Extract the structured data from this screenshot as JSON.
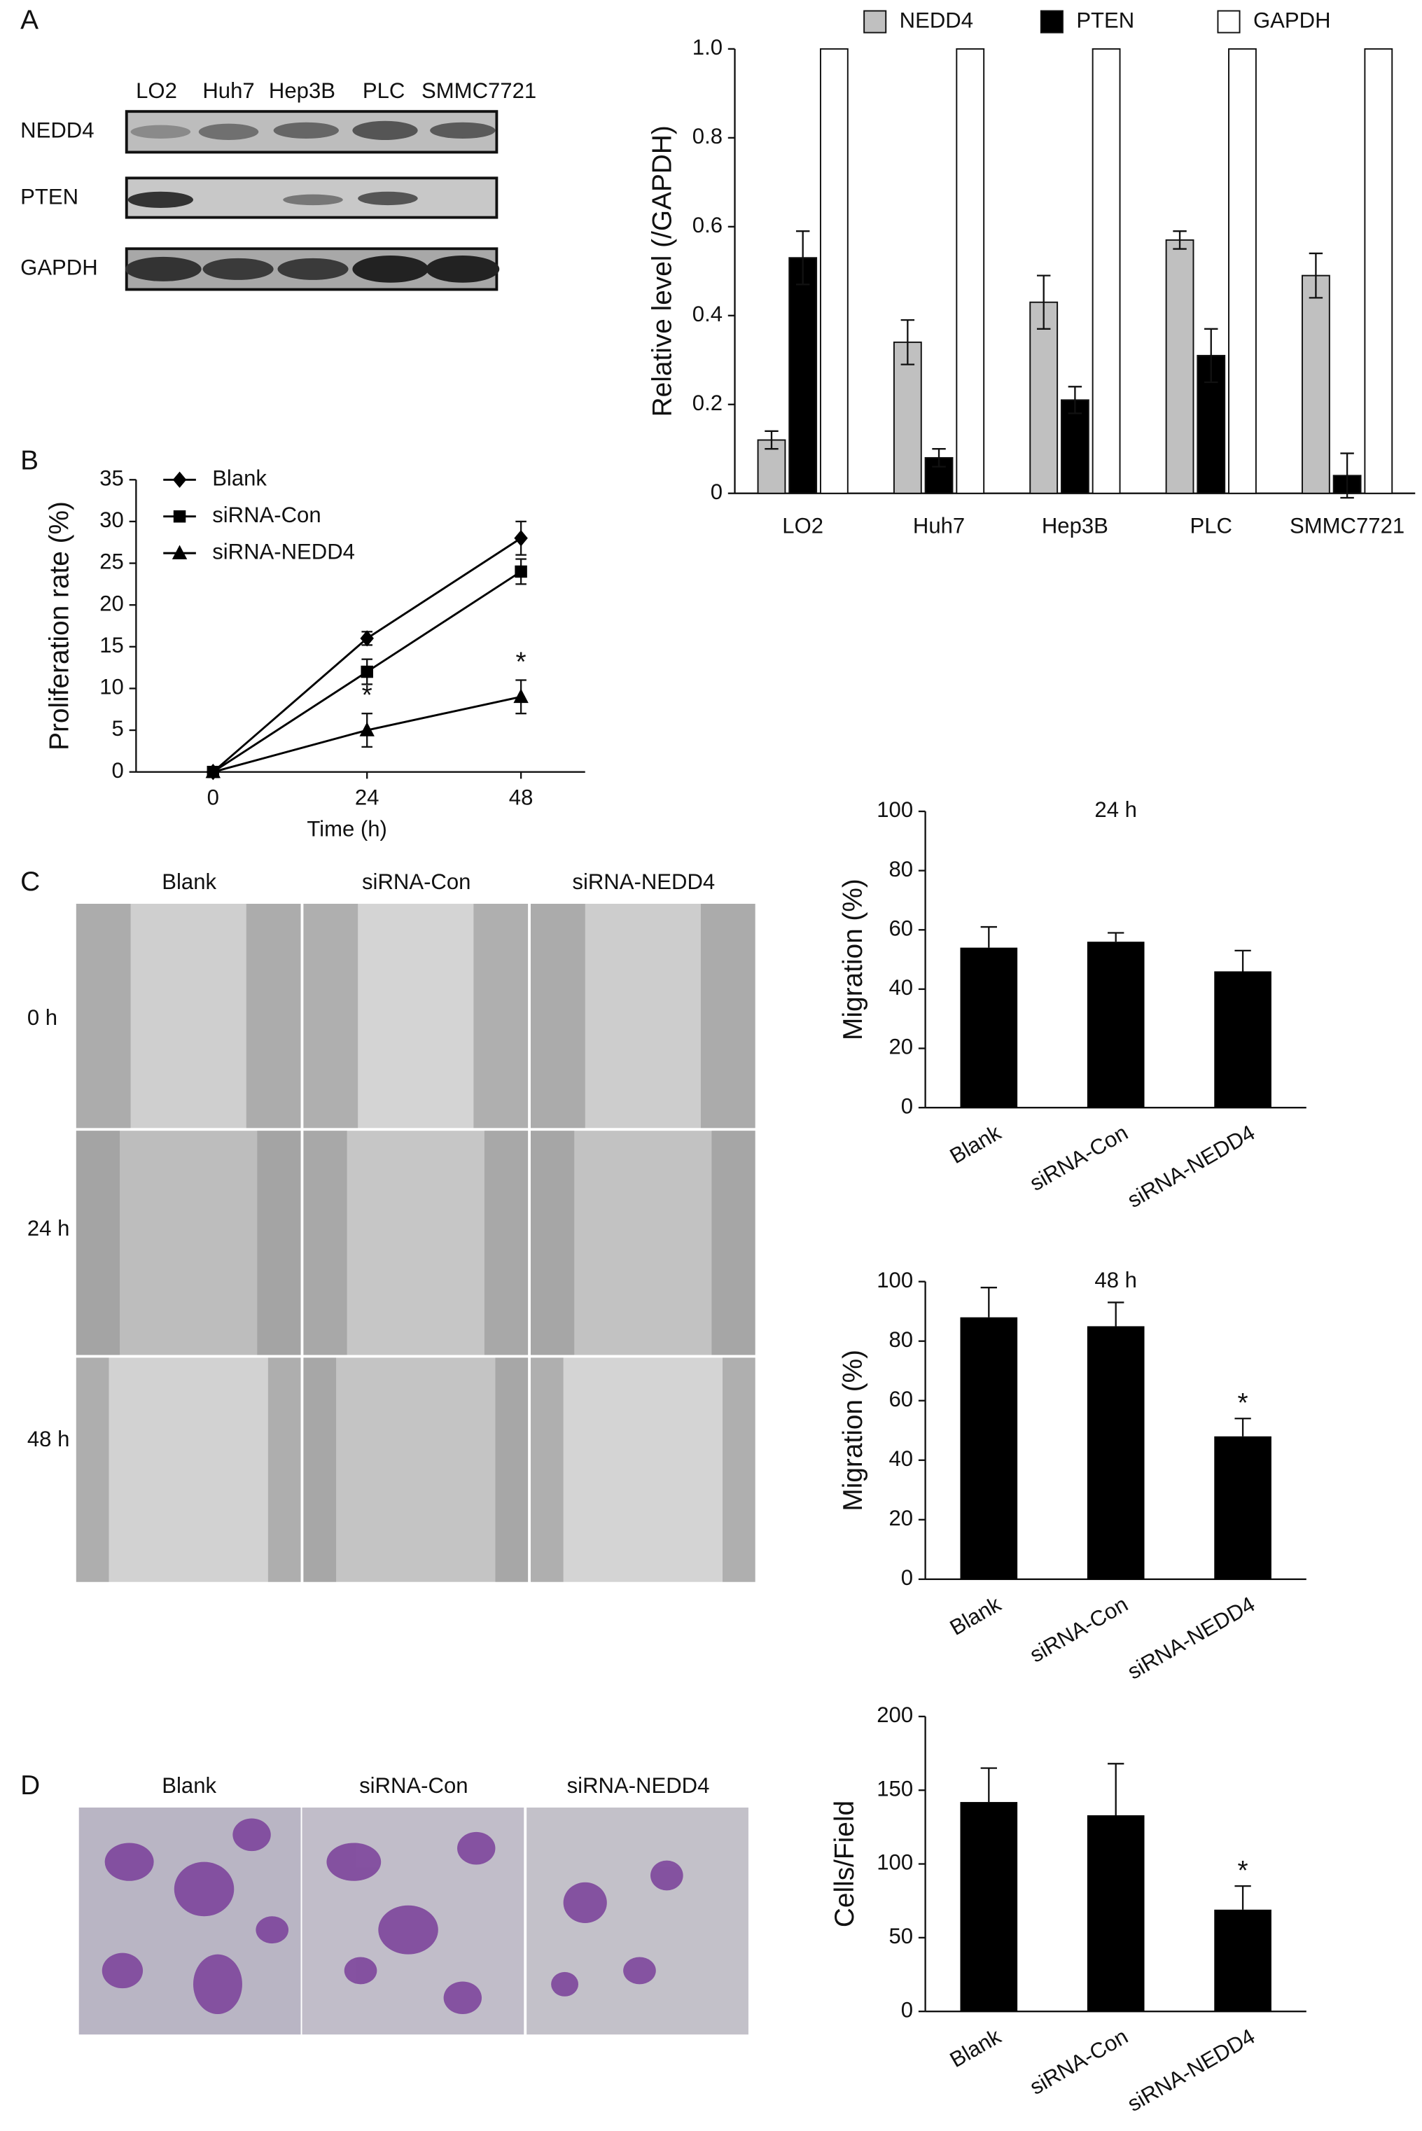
{
  "panel_labels": [
    "A",
    "B",
    "C",
    "D"
  ],
  "blot": {
    "lanes": [
      "LO2",
      "Huh7",
      "Hep3B",
      "PLC",
      "SMMC7721"
    ],
    "rows": [
      "NEDD4",
      "PTEN",
      "GAPDH"
    ]
  },
  "wound": {
    "columns": [
      "Blank",
      "siRNA-Con",
      "siRNA-NEDD4"
    ],
    "rows": [
      "0 h",
      "24 h",
      "48 h"
    ]
  },
  "transwell": {
    "columns": [
      "Blank",
      "siRNA-Con",
      "siRNA-NEDD4"
    ]
  },
  "chart_data": [
    {
      "type": "bar",
      "ylabel": "Relative level (/GAPDH)",
      "categories": [
        "LO2",
        "Huh7",
        "Hep3B",
        "PLC",
        "SMMC7721"
      ],
      "series": [
        {
          "name": "NEDD4",
          "color": "#c0c0c0",
          "values": [
            0.12,
            0.34,
            0.43,
            0.57,
            0.49
          ],
          "error": [
            0.02,
            0.05,
            0.06,
            0.02,
            0.05
          ]
        },
        {
          "name": "PTEN",
          "color": "#000000",
          "values": [
            0.53,
            0.08,
            0.21,
            0.31,
            0.04
          ],
          "error": [
            0.06,
            0.02,
            0.03,
            0.06,
            0.05
          ]
        },
        {
          "name": "GAPDH",
          "color": "#ffffff",
          "values": [
            1,
            1,
            1,
            1,
            1
          ]
        }
      ],
      "ylim": [
        0,
        1
      ],
      "yticks": [
        0,
        0.2,
        0.4,
        0.6,
        0.8,
        {
          "value": 1,
          "label": "1.0"
        }
      ],
      "legend": "top"
    },
    {
      "type": "line",
      "xlabel": "Time (h)",
      "ylabel": "Proliferation rate (%)",
      "x": [
        0,
        24,
        48
      ],
      "xlim": [
        -12,
        58
      ],
      "xticks": [
        0,
        24,
        48
      ],
      "series": [
        {
          "name": "Blank",
          "color": "#000000",
          "marker": "diamond",
          "values": [
            0,
            16,
            28
          ],
          "error": [
            0,
            0.8,
            2
          ]
        },
        {
          "name": "siRNA-Con",
          "color": "#000000",
          "marker": "square",
          "values": [
            0,
            12,
            24
          ],
          "error": [
            0,
            1.5,
            1.5
          ]
        },
        {
          "name": "siRNA-NEDD4",
          "color": "#000000",
          "marker": "triangle",
          "values": [
            0,
            5,
            9
          ],
          "error": [
            0,
            2,
            2
          ]
        }
      ],
      "ylim": [
        0,
        35
      ],
      "yticks": [
        0,
        5,
        10,
        15,
        20,
        25,
        30,
        35
      ],
      "legend": "top-left",
      "annotations": [
        {
          "label": "*",
          "series": "siRNA-NEDD4",
          "x": 24
        },
        {
          "label": "*",
          "series": "siRNA-NEDD4",
          "x": 48
        }
      ]
    },
    {
      "type": "bar",
      "title": "24 h",
      "ylabel": "Migration (%)",
      "categories": [
        "Blank",
        "siRNA-Con",
        "siRNA-NEDD4"
      ],
      "values": [
        54,
        56,
        46
      ],
      "error": [
        7,
        3,
        7
      ],
      "color": "#000000",
      "ylim": [
        0,
        100
      ],
      "yticks": [
        0,
        20,
        40,
        60,
        80,
        100
      ]
    },
    {
      "type": "bar",
      "title": "48 h",
      "ylabel": "Migration (%)",
      "categories": [
        "Blank",
        "siRNA-Con",
        "siRNA-NEDD4"
      ],
      "values": [
        88,
        85,
        48
      ],
      "error": [
        10,
        8,
        6
      ],
      "color": "#000000",
      "ylim": [
        0,
        100
      ],
      "yticks": [
        0,
        20,
        40,
        60,
        80,
        100
      ],
      "annotations": [
        {
          "label": "*",
          "category": "siRNA-NEDD4"
        }
      ]
    },
    {
      "type": "bar",
      "ylabel": "Cells/Field",
      "categories": [
        "Blank",
        "siRNA-Con",
        "siRNA-NEDD4"
      ],
      "values": [
        142,
        133,
        69
      ],
      "error": [
        23,
        35,
        16
      ],
      "color": "#000000",
      "ylim": [
        0,
        200
      ],
      "yticks": [
        0,
        50,
        100,
        150,
        200
      ],
      "annotations": [
        {
          "label": "*",
          "category": "siRNA-NEDD4"
        }
      ]
    }
  ]
}
